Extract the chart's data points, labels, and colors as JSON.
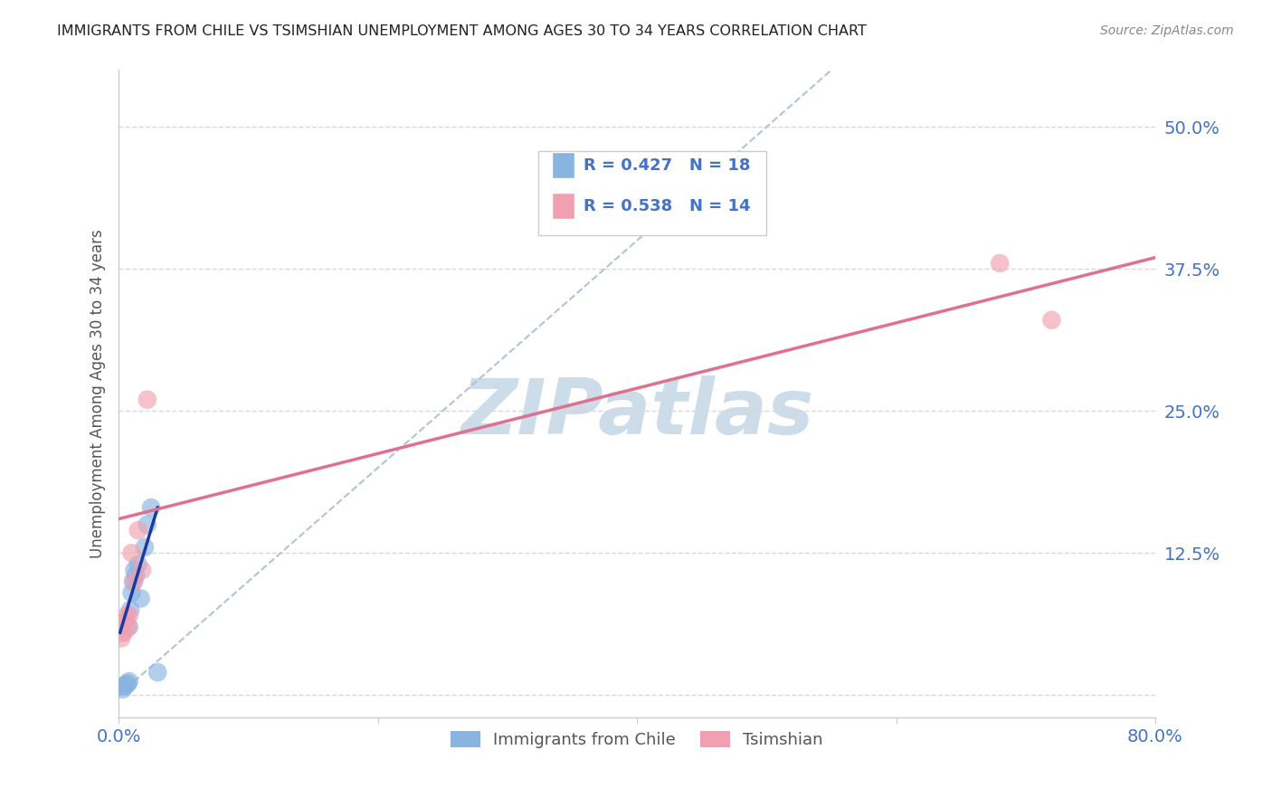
{
  "title": "IMMIGRANTS FROM CHILE VS TSIMSHIAN UNEMPLOYMENT AMONG AGES 30 TO 34 YEARS CORRELATION CHART",
  "source": "Source: ZipAtlas.com",
  "ylabel_label": "Unemployment Among Ages 30 to 34 years",
  "legend_bottom_labels": [
    "Immigrants from Chile",
    "Tsimshian"
  ],
  "blue_R": "R = 0.427",
  "blue_N": "N = 18",
  "pink_R": "R = 0.538",
  "pink_N": "N = 14",
  "xlim": [
    0.0,
    0.8
  ],
  "ylim": [
    -0.02,
    0.55
  ],
  "xticks": [
    0.0,
    0.2,
    0.4,
    0.6,
    0.8
  ],
  "yticks": [
    0.0,
    0.125,
    0.25,
    0.375,
    0.5
  ],
  "xticklabels": [
    "0.0%",
    "",
    "",
    "",
    "80.0%"
  ],
  "yticklabels": [
    "",
    "12.5%",
    "25.0%",
    "37.5%",
    "50.0%"
  ],
  "watermark": "ZIPatlas",
  "blue_scatter_x": [
    0.003,
    0.004,
    0.005,
    0.006,
    0.007,
    0.008,
    0.008,
    0.009,
    0.01,
    0.011,
    0.012,
    0.013,
    0.015,
    0.017,
    0.02,
    0.022,
    0.025,
    0.03
  ],
  "blue_scatter_y": [
    0.005,
    0.008,
    0.008,
    0.01,
    0.01,
    0.012,
    0.06,
    0.075,
    0.09,
    0.1,
    0.11,
    0.105,
    0.115,
    0.085,
    0.13,
    0.15,
    0.165,
    0.02
  ],
  "pink_scatter_x": [
    0.002,
    0.003,
    0.004,
    0.005,
    0.006,
    0.007,
    0.008,
    0.01,
    0.012,
    0.015,
    0.018,
    0.022,
    0.68,
    0.72
  ],
  "pink_scatter_y": [
    0.05,
    0.055,
    0.055,
    0.065,
    0.07,
    0.06,
    0.07,
    0.125,
    0.1,
    0.145,
    0.11,
    0.26,
    0.38,
    0.33
  ],
  "blue_line_x": [
    0.001,
    0.03
  ],
  "blue_line_y": [
    0.055,
    0.165
  ],
  "pink_line_x": [
    0.0,
    0.8
  ],
  "pink_line_y": [
    0.155,
    0.385
  ],
  "diag_line_x": [
    0.0,
    0.55
  ],
  "diag_line_y": [
    0.0,
    0.55
  ],
  "blue_color": "#8ab4e0",
  "pink_color": "#f0a0b0",
  "blue_line_color": "#1a3a9e",
  "pink_line_color": "#e07090",
  "diag_line_color": "#b0c4d8",
  "title_color": "#222222",
  "source_color": "#888888",
  "axis_label_color": "#555555",
  "tick_color_x": "#4472c4",
  "tick_color_y": "#4472c4",
  "legend_R_color": "#4472c4",
  "watermark_color": "#ccdce8",
  "grid_color": "#d8d8e0"
}
